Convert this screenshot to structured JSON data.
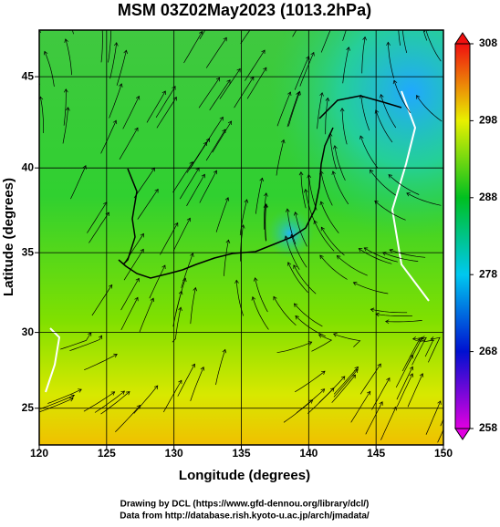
{
  "chart_data": {
    "type": "map",
    "title": "MSM 03Z02May2023 (1013.2hPa)",
    "x_label": "Longitude (degrees)",
    "y_label": "Latitude  (degrees)",
    "projection": "mercator",
    "xlim": [
      120,
      150
    ],
    "xticks": [
      120,
      125,
      130,
      135,
      140,
      145,
      150
    ],
    "ylim": [
      22.5,
      47.4
    ],
    "yticks": [
      25,
      30,
      35,
      40,
      45
    ],
    "grid": true,
    "colorbar": {
      "lim": [
        258,
        308
      ],
      "ticks": [
        258,
        268,
        278,
        288,
        298,
        308
      ],
      "colors": [
        "#e000e0",
        "#0010d0",
        "#00c8f0",
        "#00c020",
        "#e8f000",
        "#f01010"
      ]
    },
    "footer": [
      "Drawing by DCL (https://www.gfd-dennou.org/library/dcl/)",
      "Data from http://database.rish.kyoto-u.ac.jp/arch/jmadata/"
    ]
  }
}
